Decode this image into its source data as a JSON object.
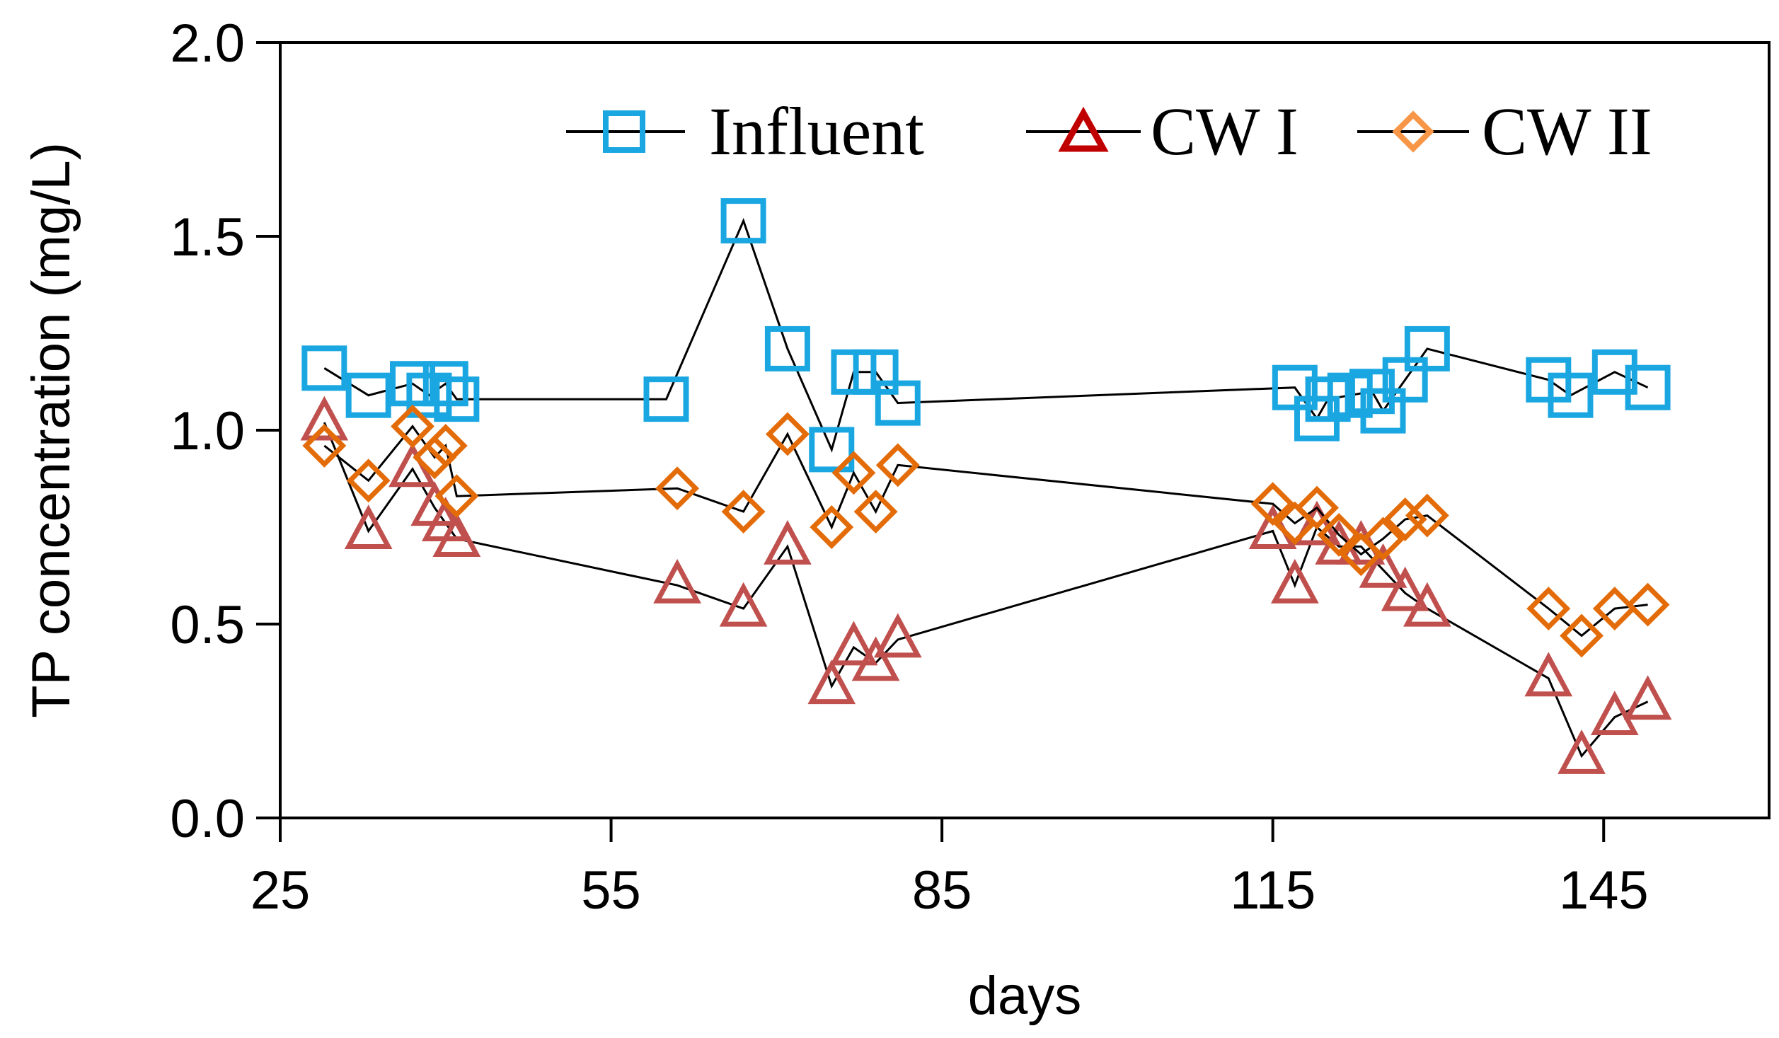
{
  "chart_data": {
    "type": "line",
    "title": "",
    "xlabel": "days",
    "ylabel": "TP concentration (mg/L)",
    "xlim": [
      25,
      160
    ],
    "ylim": [
      0,
      2.0
    ],
    "xticks": [
      25,
      55,
      85,
      115,
      145
    ],
    "yticks": [
      0.0,
      0.5,
      1.0,
      1.5,
      2.0
    ],
    "xtick_labels": [
      "25",
      "55",
      "85",
      "115",
      "145"
    ],
    "ytick_labels": [
      "0.0",
      "0.5",
      "1.0",
      "1.5",
      "2.0"
    ],
    "grid": false,
    "legend_position": "top",
    "series": [
      {
        "name": "Influent",
        "marker": "square",
        "color": "#1AA7E1",
        "x": [
          29,
          33,
          37,
          38.5,
          40,
          41,
          60,
          67,
          71,
          75,
          77,
          79,
          81,
          117,
          119,
          120,
          122,
          124,
          125,
          127,
          129,
          140,
          142,
          146,
          149
        ],
        "y": [
          1.16,
          1.09,
          1.12,
          1.09,
          1.12,
          1.08,
          1.08,
          1.54,
          1.21,
          0.95,
          1.15,
          1.15,
          1.07,
          1.11,
          1.03,
          1.08,
          1.09,
          1.1,
          1.05,
          1.13,
          1.21,
          1.13,
          1.09,
          1.15,
          1.11
        ]
      },
      {
        "name": "CW I",
        "marker": "triangle",
        "color": "#C0504D",
        "legend_color": "#C00000",
        "x": [
          29,
          33,
          37,
          39,
          40,
          41,
          61,
          67,
          71,
          75,
          77,
          79,
          81,
          115,
          117,
          119,
          121,
          123,
          125,
          127,
          129,
          140,
          143,
          146,
          149
        ],
        "y": [
          1.02,
          0.74,
          0.9,
          0.8,
          0.76,
          0.72,
          0.6,
          0.54,
          0.7,
          0.34,
          0.44,
          0.4,
          0.46,
          0.74,
          0.6,
          0.75,
          0.7,
          0.7,
          0.64,
          0.58,
          0.54,
          0.36,
          0.16,
          0.26,
          0.3
        ]
      },
      {
        "name": "CW II",
        "marker": "diamond",
        "color": "#E36C09",
        "legend_color": "#F79646",
        "x": [
          29,
          33,
          37,
          39,
          40,
          41,
          61,
          67,
          71,
          75,
          77,
          79,
          81,
          115,
          117,
          119,
          121,
          123,
          125,
          127,
          129,
          140,
          143,
          146,
          149
        ],
        "y": [
          0.96,
          0.87,
          1.01,
          0.93,
          0.96,
          0.83,
          0.85,
          0.79,
          0.99,
          0.75,
          0.89,
          0.79,
          0.91,
          0.81,
          0.76,
          0.8,
          0.73,
          0.68,
          0.72,
          0.77,
          0.78,
          0.54,
          0.47,
          0.54,
          0.55
        ]
      }
    ]
  }
}
